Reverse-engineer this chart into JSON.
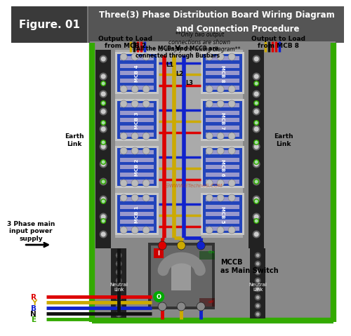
{
  "title_line1": "Three(3) Phase Distribution Board Wiring Diagram",
  "title_line2": "and Connection Procedure",
  "figure_label": "Figure. 01",
  "header_bg": "#555555",
  "fig_label_bg": "#3a3a3a",
  "panel_bg": "#888888",
  "panel_inner_bg": "#aaaaaa",
  "mcb_body_color": "#2244bb",
  "mcb_slot_color": "#9999cc",
  "mcb_frame_color": "#cccccc",
  "wire_red": "#dd0000",
  "wire_yellow": "#ccaa00",
  "wire_blue": "#1122cc",
  "wire_black": "#111111",
  "wire_green": "#33aa00",
  "term_strip_color": "#222222",
  "green_strip": "#33aa00",
  "note_text": "**Only two output\nconnections are shown\nto simply the wiring diagram**",
  "busbar_note": "All the MCBs and MCCB are\nconnected through Busbars",
  "mccb_label": "MCCB\nas Main Switch",
  "supply_label": "3 Phase main\ninput power\nsupply",
  "left_mcb_labels": [
    "MCB 4",
    "MCB 3",
    "MCB 2",
    "MCB 1"
  ],
  "right_mcb_labels": [
    "MCB 8",
    "MCB 7",
    "MCB 6",
    "MCB 5"
  ],
  "earth_link_label": "Earth\nLink",
  "neutral_link_label": "Neutral\nLink",
  "output_left": "Output to Load\nfrom MCB 2",
  "output_right": "Output to Load\nfrom MCB 8",
  "phase_labels": [
    "R",
    "Y",
    "B",
    "N",
    "E"
  ],
  "phase_colors": [
    "#dd0000",
    "#ccaa00",
    "#1122cc",
    "#111111",
    "#33aa00"
  ],
  "L_labels": [
    "L1",
    "L2",
    "L3"
  ],
  "website": "@WWW.ETechnoG.COM"
}
